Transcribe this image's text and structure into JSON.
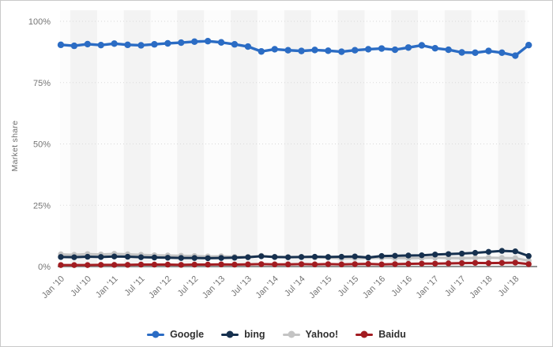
{
  "chart_data": {
    "type": "line",
    "title": "",
    "ylabel": "Market share",
    "xlabel": "",
    "ylim": [
      0,
      100
    ],
    "grid": "horizontal-dotted",
    "background_stripes": true,
    "legend_position": "bottom",
    "y_ticks": [
      {
        "label": "0%",
        "value": 0
      },
      {
        "label": "25%",
        "value": 25
      },
      {
        "label": "50%",
        "value": 50
      },
      {
        "label": "75%",
        "value": 75
      },
      {
        "label": "100%",
        "value": 100
      }
    ],
    "x_tick_labels": [
      "Jan '10",
      "Jul '10",
      "Jan '11",
      "Jul '11",
      "Jan '12",
      "Jul '12",
      "Jan '13",
      "Jul '13",
      "Jan '14",
      "Jul '14",
      "Jan '15",
      "Jul '15",
      "Jan '16",
      "Jul '16",
      "Jan '17",
      "Jul '17",
      "Jan '18",
      "Jul '18"
    ],
    "x_range_note": "quarterly data points from Jan 2010 to Oct 2018 (36 points, ticks every 6 months)",
    "series": [
      {
        "name": "Google",
        "color": "#2b6cc4",
        "values": [
          90.4,
          90.0,
          90.7,
          90.3,
          90.9,
          90.4,
          90.2,
          90.6,
          91.0,
          91.3,
          91.7,
          91.9,
          91.4,
          90.6,
          89.7,
          87.7,
          88.6,
          88.2,
          87.9,
          88.3,
          88.0,
          87.6,
          88.2,
          88.6,
          88.9,
          88.4,
          89.3,
          90.2,
          89.0,
          88.4,
          87.3,
          87.2,
          87.9,
          87.2,
          86.0,
          90.3
        ]
      },
      {
        "name": "bing",
        "color": "#16304e",
        "values": [
          3.9,
          3.8,
          4.0,
          3.9,
          4.1,
          4.0,
          3.8,
          3.7,
          3.6,
          3.5,
          3.5,
          3.4,
          3.5,
          3.6,
          3.8,
          4.2,
          3.9,
          3.8,
          3.9,
          4.0,
          3.9,
          4.0,
          4.1,
          3.7,
          4.3,
          4.4,
          4.5,
          4.6,
          4.9,
          5.1,
          5.3,
          5.6,
          6.0,
          6.4,
          6.2,
          4.3
        ]
      },
      {
        "name": "Yahoo!",
        "color": "#c4c4c4",
        "values": [
          5.0,
          4.8,
          5.1,
          4.9,
          5.2,
          5.0,
          4.8,
          4.6,
          4.5,
          4.4,
          4.3,
          4.1,
          4.2,
          4.0,
          3.9,
          4.4,
          4.0,
          3.8,
          3.9,
          3.7,
          3.6,
          3.4,
          3.5,
          3.4,
          3.6,
          3.5,
          3.4,
          3.5,
          3.6,
          3.5,
          3.4,
          3.5,
          3.6,
          3.5,
          3.4,
          2.4
        ]
      },
      {
        "name": "Baidu",
        "color": "#a21c21",
        "values": [
          0.6,
          0.6,
          0.6,
          0.7,
          0.7,
          0.7,
          0.8,
          0.8,
          0.8,
          0.7,
          0.8,
          0.8,
          0.9,
          0.8,
          0.9,
          1.0,
          0.9,
          0.9,
          1.0,
          0.9,
          1.0,
          0.9,
          1.0,
          1.1,
          0.9,
          1.0,
          1.1,
          1.2,
          1.2,
          1.3,
          1.4,
          1.5,
          1.4,
          1.5,
          1.6,
          1.0
        ]
      }
    ],
    "colors": {
      "plot_stripe_gray": "#f3f3f3",
      "plot_stripe_light": "#fcfcfc",
      "gridline": "#d9d9d9",
      "axis_line": "#909090",
      "tick_text": "#757575",
      "legend_text": "#303030"
    }
  }
}
